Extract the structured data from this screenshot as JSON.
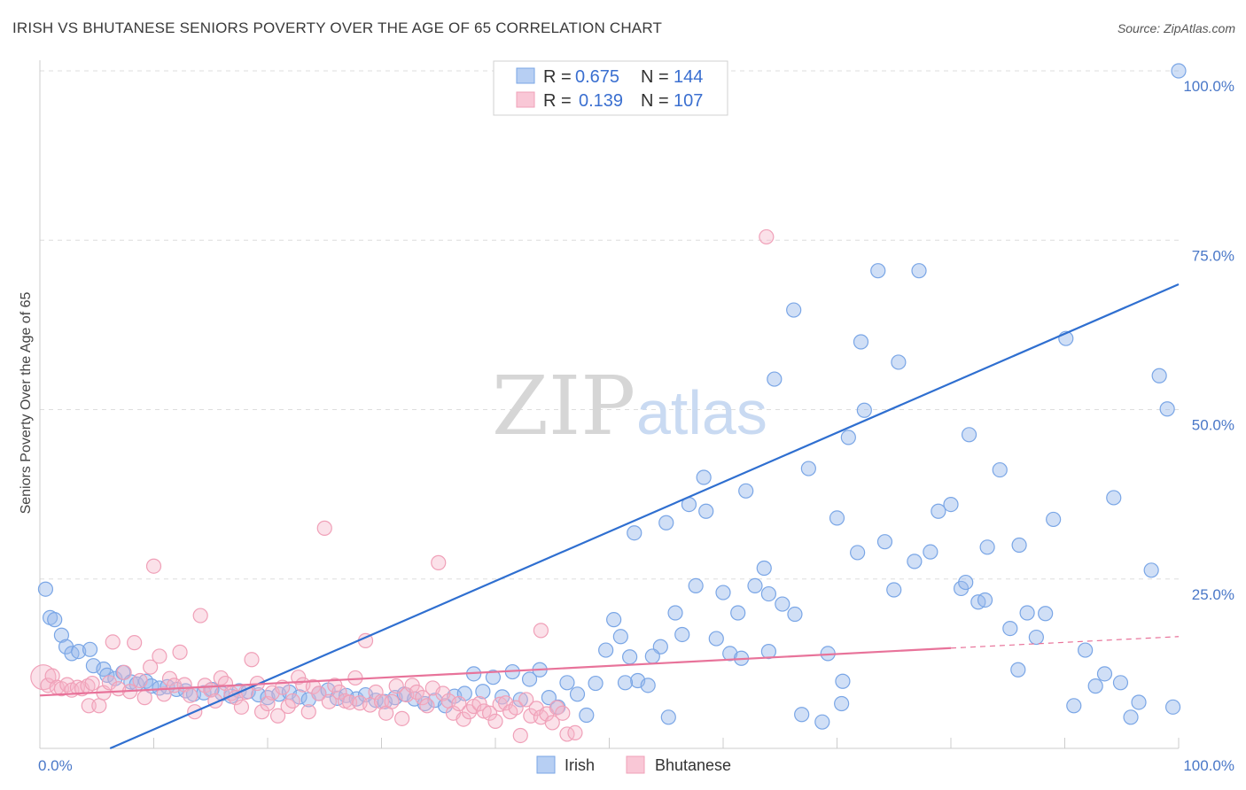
{
  "title": "IRISH VS BHUTANESE SENIORS POVERTY OVER THE AGE OF 65 CORRELATION CHART",
  "source": "Source: ZipAtlas.com",
  "watermark": {
    "zip": "ZIP",
    "atlas": "atlas"
  },
  "colors": {
    "irish": "#7aa6e6",
    "irish_line": "#2f6fd0",
    "bhutanese": "#f0a0b8",
    "bhutanese_line": "#e8739a",
    "grid": "#dddddd",
    "tick": "#4a78c8"
  },
  "legend": {
    "irish": {
      "r_label": "R =",
      "r_value": "0.675",
      "n_label": "N =",
      "n_value": "144"
    },
    "bhutanese": {
      "r_label": "R =",
      "r_value": "0.139",
      "n_label": "N =",
      "n_value": "107"
    }
  },
  "bottom_legend": {
    "irish": "Irish",
    "bhutanese": "Bhutanese"
  },
  "chart_data": {
    "type": "scatter",
    "title": "IRISH VS BHUTANESE SENIORS POVERTY OVER THE AGE OF 65 CORRELATION CHART",
    "xlabel": "",
    "ylabel": "Seniors Poverty Over the Age of 65",
    "xlim": [
      0,
      100
    ],
    "ylim": [
      0,
      100
    ],
    "x_tick_labels": [
      "0.0%",
      "100.0%"
    ],
    "y_tick_labels": [
      "25.0%",
      "50.0%",
      "75.0%",
      "100.0%"
    ],
    "y_ticks": [
      25,
      50,
      75,
      100
    ],
    "grid": true,
    "legend_placement": "top-center",
    "series": [
      {
        "name": "Irish",
        "r": 0.675,
        "n": 144,
        "trendline": {
          "x": [
            0,
            100
          ],
          "y": [
            -4.5,
            68.5
          ]
        },
        "points": [
          [
            0.5,
            23.5
          ],
          [
            0.9,
            19.3
          ],
          [
            1.3,
            19.0
          ],
          [
            1.9,
            16.7
          ],
          [
            2.3,
            15.0
          ],
          [
            2.8,
            14.0
          ],
          [
            3.4,
            14.3
          ],
          [
            4.4,
            14.6
          ],
          [
            4.7,
            12.2
          ],
          [
            5.6,
            11.7
          ],
          [
            5.9,
            10.8
          ],
          [
            6.6,
            10.3
          ],
          [
            7.3,
            11.2
          ],
          [
            8.0,
            9.8
          ],
          [
            8.5,
            9.5
          ],
          [
            9.3,
            9.9
          ],
          [
            9.8,
            9.2
          ],
          [
            10.5,
            8.9
          ],
          [
            11.2,
            9.1
          ],
          [
            12.0,
            8.7
          ],
          [
            12.8,
            8.5
          ],
          [
            13.5,
            8.0
          ],
          [
            14.4,
            8.2
          ],
          [
            15.1,
            8.7
          ],
          [
            16.0,
            8.1
          ],
          [
            16.8,
            7.7
          ],
          [
            17.5,
            8.5
          ],
          [
            18.3,
            8.4
          ],
          [
            19.2,
            7.9
          ],
          [
            20.0,
            7.5
          ],
          [
            21.0,
            8.0
          ],
          [
            21.9,
            8.3
          ],
          [
            22.8,
            7.6
          ],
          [
            23.6,
            7.2
          ],
          [
            24.5,
            8.1
          ],
          [
            25.3,
            8.6
          ],
          [
            26.1,
            7.4
          ],
          [
            26.9,
            7.8
          ],
          [
            27.8,
            7.3
          ],
          [
            28.6,
            7.9
          ],
          [
            29.5,
            7.1
          ],
          [
            30.3,
            6.9
          ],
          [
            31.2,
            7.5
          ],
          [
            32.0,
            8.0
          ],
          [
            32.9,
            7.3
          ],
          [
            33.8,
            6.6
          ],
          [
            34.7,
            7.1
          ],
          [
            35.6,
            6.3
          ],
          [
            36.4,
            7.7
          ],
          [
            37.3,
            8.1
          ],
          [
            38.1,
            11.0
          ],
          [
            38.9,
            8.4
          ],
          [
            39.8,
            10.5
          ],
          [
            40.6,
            7.6
          ],
          [
            41.5,
            11.3
          ],
          [
            42.2,
            7.2
          ],
          [
            43.0,
            10.2
          ],
          [
            43.9,
            11.6
          ],
          [
            44.7,
            7.5
          ],
          [
            45.5,
            6.1
          ],
          [
            46.3,
            9.7
          ],
          [
            47.2,
            8.0
          ],
          [
            48.0,
            4.9
          ],
          [
            48.8,
            9.6
          ],
          [
            49.7,
            14.5
          ],
          [
            50.4,
            19.0
          ],
          [
            51.0,
            16.5
          ],
          [
            51.8,
            13.5
          ],
          [
            52.5,
            10.0
          ],
          [
            53.4,
            9.3
          ],
          [
            54.5,
            15.0
          ],
          [
            55.8,
            20.0
          ],
          [
            55.2,
            4.6
          ],
          [
            57.0,
            36.0
          ],
          [
            57.6,
            24.0
          ],
          [
            58.3,
            40.0
          ],
          [
            59.4,
            16.2
          ],
          [
            60.6,
            14.0
          ],
          [
            61.6,
            13.3
          ],
          [
            61.3,
            20.0
          ],
          [
            62.8,
            24.0
          ],
          [
            63.6,
            26.6
          ],
          [
            64.0,
            22.8
          ],
          [
            65.2,
            21.3
          ],
          [
            66.3,
            19.8
          ],
          [
            66.9,
            5.0
          ],
          [
            68.7,
            3.9
          ],
          [
            69.2,
            14.0
          ],
          [
            70.4,
            6.6
          ],
          [
            70.5,
            9.9
          ],
          [
            71.8,
            28.9
          ],
          [
            72.4,
            49.9
          ],
          [
            74.2,
            30.5
          ],
          [
            75.4,
            57.0
          ],
          [
            76.8,
            27.6
          ],
          [
            77.2,
            70.5
          ],
          [
            78.9,
            35.0
          ],
          [
            80.0,
            36.0
          ],
          [
            80.9,
            23.6
          ],
          [
            81.6,
            46.3
          ],
          [
            82.4,
            21.6
          ],
          [
            83.2,
            29.7
          ],
          [
            84.3,
            41.1
          ],
          [
            85.2,
            17.7
          ],
          [
            85.9,
            11.6
          ],
          [
            86.7,
            20.0
          ],
          [
            87.5,
            16.4
          ],
          [
            88.3,
            19.9
          ],
          [
            89.0,
            33.8
          ],
          [
            90.1,
            60.5
          ],
          [
            90.8,
            6.3
          ],
          [
            91.8,
            14.5
          ],
          [
            92.7,
            9.2
          ],
          [
            93.5,
            11.0
          ],
          [
            94.3,
            37.0
          ],
          [
            94.9,
            9.7
          ],
          [
            95.8,
            4.6
          ],
          [
            96.5,
            6.8
          ],
          [
            97.6,
            26.3
          ],
          [
            98.3,
            55.0
          ],
          [
            99.0,
            50.1
          ],
          [
            99.5,
            6.1
          ],
          [
            100.0,
            100.0
          ],
          [
            86.0,
            30.0
          ],
          [
            64.5,
            54.5
          ],
          [
            66.2,
            64.7
          ],
          [
            72.1,
            60.0
          ],
          [
            73.6,
            70.5
          ],
          [
            75.0,
            23.4
          ],
          [
            78.2,
            29.0
          ],
          [
            81.3,
            24.5
          ],
          [
            83.0,
            21.9
          ],
          [
            70.0,
            34.0
          ],
          [
            71.0,
            45.9
          ],
          [
            67.5,
            41.3
          ],
          [
            64.0,
            14.3
          ],
          [
            62.0,
            38.0
          ],
          [
            60.0,
            23.0
          ],
          [
            58.5,
            35.0
          ],
          [
            56.4,
            16.8
          ],
          [
            55.0,
            33.3
          ],
          [
            53.8,
            13.6
          ],
          [
            52.2,
            31.8
          ],
          [
            51.4,
            9.7
          ]
        ]
      },
      {
        "name": "Bhutanese",
        "r": 0.139,
        "n": 107,
        "trendline": {
          "x": [
            0,
            80
          ],
          "y": [
            7.8,
            14.8
          ]
        },
        "trendline_dashed": {
          "x": [
            80,
            100
          ],
          "y": [
            14.8,
            16.5
          ]
        },
        "points": [
          [
            0.3,
            10.5
          ],
          [
            0.7,
            9.3
          ],
          [
            1.1,
            10.7
          ],
          [
            1.5,
            9.0
          ],
          [
            1.9,
            8.8
          ],
          [
            2.4,
            9.4
          ],
          [
            2.8,
            8.6
          ],
          [
            3.3,
            9.0
          ],
          [
            3.7,
            8.8
          ],
          [
            4.2,
            9.2
          ],
          [
            4.6,
            9.6
          ],
          [
            4.3,
            6.3
          ],
          [
            5.2,
            6.3
          ],
          [
            5.6,
            8.2
          ],
          [
            6.1,
            9.7
          ],
          [
            6.4,
            15.7
          ],
          [
            6.9,
            8.8
          ],
          [
            7.4,
            11.2
          ],
          [
            7.9,
            8.4
          ],
          [
            8.3,
            15.6
          ],
          [
            8.8,
            10.0
          ],
          [
            9.2,
            7.5
          ],
          [
            9.7,
            12.0
          ],
          [
            10.0,
            26.9
          ],
          [
            10.5,
            13.6
          ],
          [
            10.9,
            8.0
          ],
          [
            11.4,
            10.3
          ],
          [
            11.8,
            9.3
          ],
          [
            12.3,
            14.2
          ],
          [
            12.7,
            9.4
          ],
          [
            13.2,
            7.8
          ],
          [
            13.6,
            5.4
          ],
          [
            14.1,
            19.6
          ],
          [
            14.5,
            9.3
          ],
          [
            15.0,
            8.6
          ],
          [
            15.4,
            7.0
          ],
          [
            15.9,
            10.4
          ],
          [
            16.3,
            9.6
          ],
          [
            16.8,
            8.1
          ],
          [
            17.2,
            7.5
          ],
          [
            17.7,
            6.1
          ],
          [
            18.1,
            8.3
          ],
          [
            18.6,
            13.1
          ],
          [
            19.1,
            9.6
          ],
          [
            19.5,
            5.4
          ],
          [
            20.0,
            6.6
          ],
          [
            20.4,
            8.2
          ],
          [
            20.9,
            4.8
          ],
          [
            21.3,
            9.0
          ],
          [
            21.8,
            6.2
          ],
          [
            22.2,
            7.0
          ],
          [
            22.7,
            10.5
          ],
          [
            23.1,
            9.4
          ],
          [
            23.6,
            5.4
          ],
          [
            24.0,
            9.1
          ],
          [
            24.5,
            8.1
          ],
          [
            25.0,
            32.5
          ],
          [
            25.4,
            6.9
          ],
          [
            25.9,
            9.3
          ],
          [
            26.3,
            8.3
          ],
          [
            26.8,
            7.0
          ],
          [
            27.2,
            6.8
          ],
          [
            27.7,
            10.4
          ],
          [
            28.1,
            6.7
          ],
          [
            28.6,
            15.9
          ],
          [
            29.0,
            6.4
          ],
          [
            29.5,
            8.3
          ],
          [
            30.0,
            6.9
          ],
          [
            30.4,
            5.2
          ],
          [
            30.9,
            6.9
          ],
          [
            31.3,
            9.2
          ],
          [
            31.8,
            4.4
          ],
          [
            32.2,
            7.9
          ],
          [
            32.7,
            9.3
          ],
          [
            33.1,
            8.3
          ],
          [
            33.6,
            7.5
          ],
          [
            34.0,
            6.3
          ],
          [
            34.5,
            8.9
          ],
          [
            35.0,
            27.4
          ],
          [
            35.4,
            8.1
          ],
          [
            35.9,
            7.0
          ],
          [
            36.3,
            5.2
          ],
          [
            36.8,
            6.6
          ],
          [
            37.2,
            4.3
          ],
          [
            37.7,
            5.4
          ],
          [
            38.1,
            6.2
          ],
          [
            38.6,
            6.6
          ],
          [
            39.0,
            5.5
          ],
          [
            39.5,
            5.2
          ],
          [
            40.0,
            4.0
          ],
          [
            40.4,
            6.5
          ],
          [
            40.9,
            6.7
          ],
          [
            41.3,
            5.4
          ],
          [
            41.8,
            6.0
          ],
          [
            42.2,
            1.9
          ],
          [
            42.7,
            7.2
          ],
          [
            43.1,
            4.8
          ],
          [
            43.6,
            5.9
          ],
          [
            44.0,
            4.6
          ],
          [
            44.5,
            5.1
          ],
          [
            45.0,
            3.8
          ],
          [
            45.4,
            6.0
          ],
          [
            45.9,
            5.2
          ],
          [
            46.3,
            2.1
          ],
          [
            47.0,
            2.3
          ],
          [
            63.8,
            75.5
          ],
          [
            44.0,
            17.4
          ]
        ]
      }
    ]
  }
}
